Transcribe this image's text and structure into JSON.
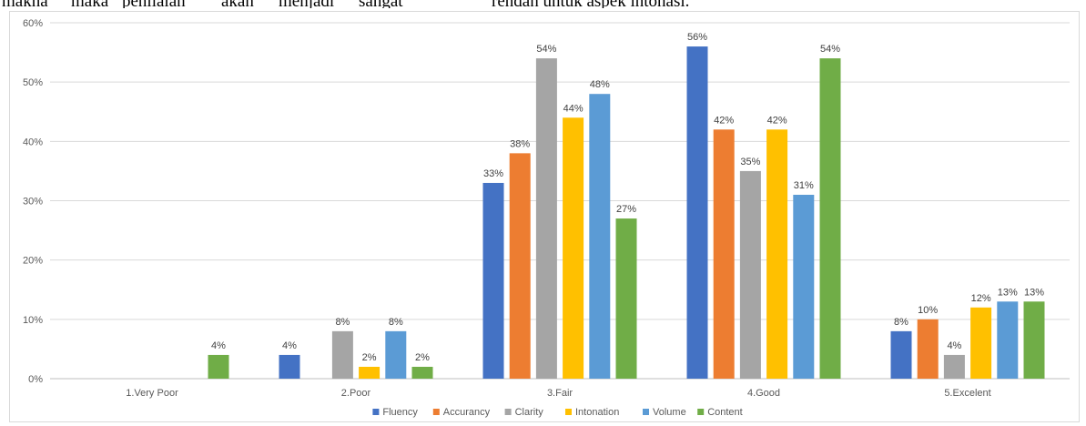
{
  "page_text": {
    "line_fragments": [
      "makna",
      "maka",
      "penilaian",
      "akan",
      "menjadi",
      "sangat",
      "rendah untuk aspek intonasi."
    ]
  },
  "chart_data": {
    "type": "bar",
    "title": "",
    "xlabel": "",
    "ylabel": "",
    "ylim": [
      0,
      60
    ],
    "y_ticks": [
      "0%",
      "10%",
      "20%",
      "30%",
      "40%",
      "50%",
      "60%"
    ],
    "grid": true,
    "legend_position": "bottom",
    "categories": [
      "1.Very Poor",
      "2.Poor",
      "3.Fair",
      "4.Good",
      "5.Excelent"
    ],
    "series": [
      {
        "name": "Fluency",
        "color": "#4472C4",
        "values": [
          null,
          4,
          33,
          56,
          8
        ],
        "labels": [
          null,
          "4%",
          "33%",
          "56%",
          "8%"
        ]
      },
      {
        "name": "Accurancy",
        "color": "#ED7D31",
        "values": [
          null,
          null,
          38,
          42,
          10
        ],
        "labels": [
          null,
          null,
          "38%",
          "42%",
          "10%"
        ]
      },
      {
        "name": "Clarity",
        "color": "#A5A5A5",
        "values": [
          null,
          8,
          54,
          35,
          4
        ],
        "labels": [
          null,
          "8%",
          "54%",
          "35%",
          "4%"
        ]
      },
      {
        "name": "Intonation",
        "color": "#FFC000",
        "values": [
          null,
          2,
          44,
          42,
          12
        ],
        "labels": [
          null,
          "2%",
          "44%",
          "42%",
          "12%"
        ]
      },
      {
        "name": "Volume",
        "color": "#5B9BD5",
        "values": [
          null,
          8,
          48,
          31,
          13
        ],
        "labels": [
          null,
          "8%",
          "48%",
          "31%",
          "13%"
        ]
      },
      {
        "name": "Content",
        "color": "#70AD47",
        "values": [
          4,
          2,
          27,
          54,
          13
        ],
        "labels": [
          "4%",
          "2%",
          "27%",
          "54%",
          "13%"
        ]
      }
    ]
  }
}
